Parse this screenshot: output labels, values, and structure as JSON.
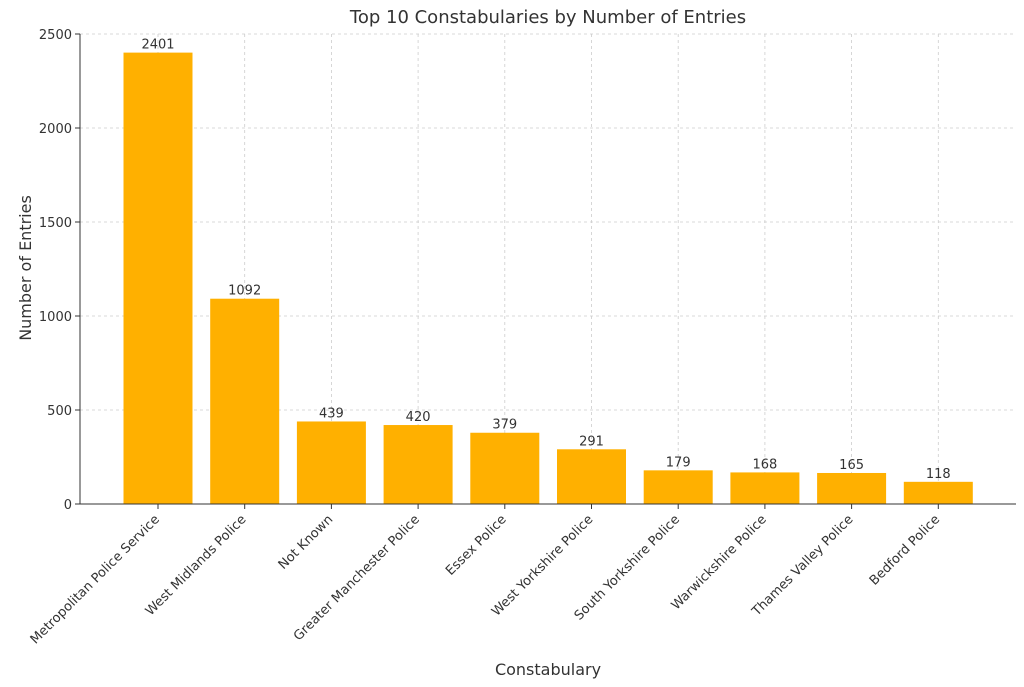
{
  "chart_data": {
    "type": "bar",
    "title": "Top 10 Constabularies by Number of Entries",
    "xlabel": "Constabulary",
    "ylabel": "Number of Entries",
    "categories": [
      "Metropolitan Police Service",
      "West Midlands Police",
      "Not Known",
      "Greater Manchester Police",
      "Essex Police",
      "West Yorkshire Police",
      "South Yorkshire Police",
      "Warwickshire Police",
      "Thames Valley Police",
      "Bedford Police"
    ],
    "values": [
      2401,
      1092,
      439,
      420,
      379,
      291,
      179,
      168,
      165,
      118
    ],
    "ylim": [
      0,
      2500
    ],
    "yticks": [
      0,
      500,
      1000,
      1500,
      2000,
      2500
    ],
    "grid": true,
    "bar_color": "#FFB000",
    "grid_color": "#cccccc"
  }
}
